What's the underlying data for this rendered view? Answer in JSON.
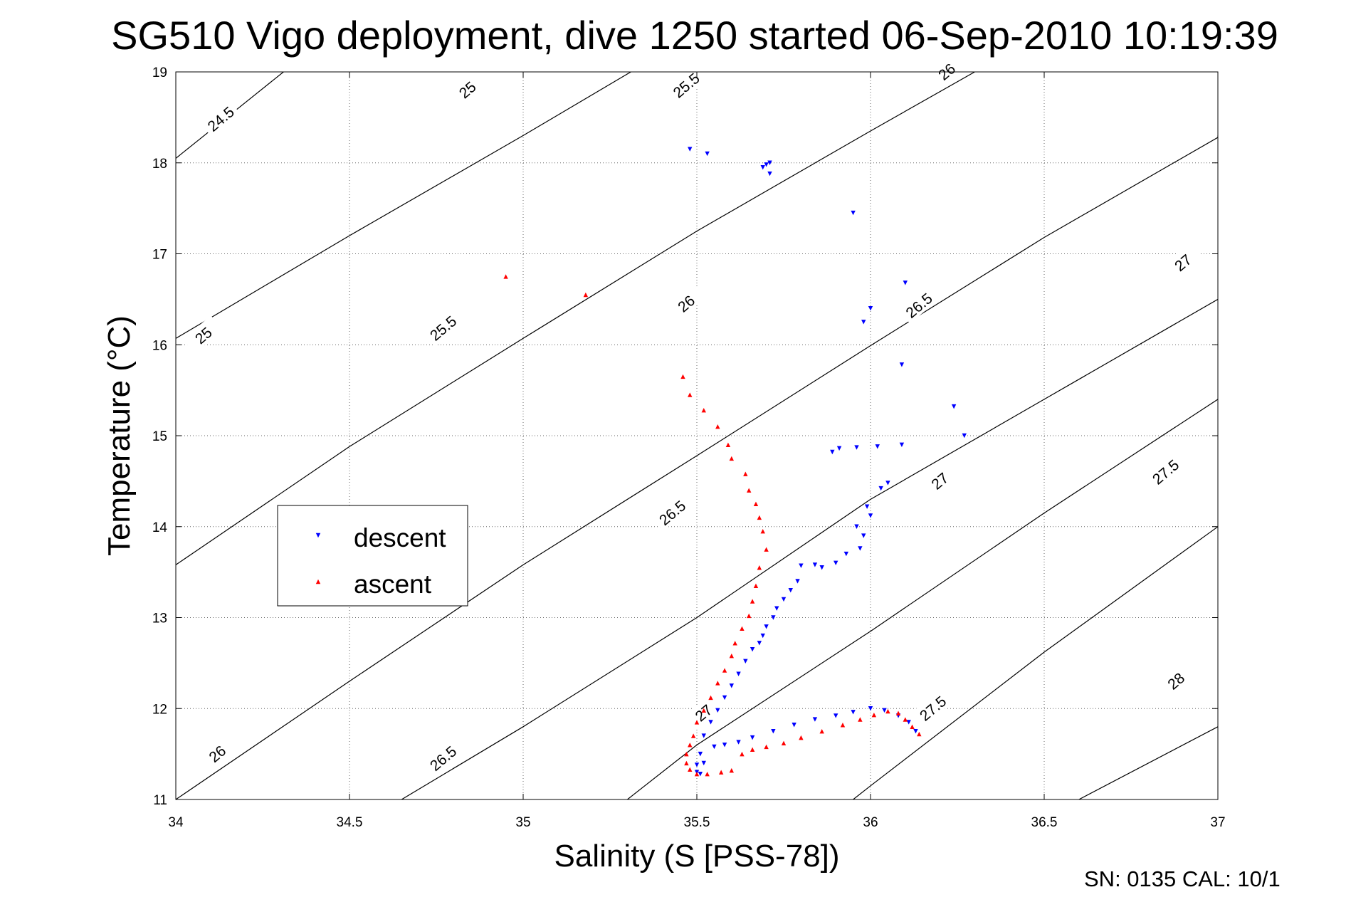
{
  "chart_data": {
    "type": "scatter",
    "title": "SG510 Vigo deployment, dive 1250 started 06-Sep-2010 10:19:39",
    "xlabel": "Salinity (S [PSS-78])",
    "ylabel": "Temperature (°C)",
    "xlim": [
      34,
      37
    ],
    "ylim": [
      11,
      19
    ],
    "xticks": [
      "34",
      "34.5",
      "35",
      "35.5",
      "36",
      "36.5",
      "37"
    ],
    "yticks": [
      "11",
      "12",
      "13",
      "14",
      "15",
      "16",
      "17",
      "18",
      "19"
    ],
    "grid": true,
    "legend": {
      "placement": "center-left",
      "entries": [
        {
          "label": "descent",
          "color": "#0000ff",
          "marker": "triangle-down"
        },
        {
          "label": "ascent",
          "color": "#ff0000",
          "marker": "triangle-up"
        }
      ]
    },
    "contours": [
      {
        "label": "24.5",
        "points": [
          [
            34.0,
            18.05
          ],
          [
            34.31,
            19.0
          ]
        ]
      },
      {
        "label": "25",
        "points": [
          [
            34.0,
            16.07
          ],
          [
            34.5,
            17.2
          ],
          [
            35.0,
            18.3
          ],
          [
            35.31,
            19.0
          ]
        ]
      },
      {
        "label": "25.5",
        "points": [
          [
            34.0,
            13.58
          ],
          [
            34.5,
            14.88
          ],
          [
            35.0,
            16.07
          ],
          [
            35.5,
            17.25
          ],
          [
            36.0,
            18.35
          ],
          [
            36.3,
            19.0
          ]
        ]
      },
      {
        "label": "26",
        "points": [
          [
            34.0,
            11.0
          ],
          [
            34.5,
            12.3
          ],
          [
            35.0,
            13.58
          ],
          [
            35.5,
            14.78
          ],
          [
            36.0,
            15.99
          ],
          [
            36.5,
            17.18
          ],
          [
            37.0,
            18.28
          ],
          [
            37.0,
            18.3
          ]
        ]
      },
      {
        "label": "26.5",
        "points": [
          [
            34.65,
            11.0
          ],
          [
            35.0,
            11.8
          ],
          [
            35.5,
            13.0
          ],
          [
            36.0,
            14.3
          ],
          [
            36.5,
            15.4
          ],
          [
            37.0,
            16.5
          ]
        ]
      },
      {
        "label": "27",
        "points": [
          [
            35.3,
            11.0
          ],
          [
            35.5,
            11.6
          ],
          [
            36.0,
            12.85
          ],
          [
            36.5,
            14.15
          ],
          [
            37.0,
            15.4
          ]
        ]
      },
      {
        "label": "27.5",
        "points": [
          [
            35.95,
            11.0
          ],
          [
            36.0,
            11.15
          ],
          [
            36.5,
            12.62
          ],
          [
            37.0,
            14.0
          ]
        ]
      },
      {
        "label": "28",
        "points": [
          [
            36.6,
            11.0
          ],
          [
            37.0,
            11.8
          ]
        ]
      }
    ],
    "contour_labels": [
      {
        "text": "24.5",
        "x": 34.13,
        "y": 18.48
      },
      {
        "text": "25",
        "x": 34.84,
        "y": 18.8
      },
      {
        "text": "25.5",
        "x": 35.47,
        "y": 18.85
      },
      {
        "text": "26",
        "x": 36.22,
        "y": 19.0
      },
      {
        "text": "25",
        "x": 34.08,
        "y": 16.1
      },
      {
        "text": "25.5",
        "x": 34.77,
        "y": 16.18
      },
      {
        "text": "26",
        "x": 35.47,
        "y": 16.45
      },
      {
        "text": "26.5",
        "x": 36.14,
        "y": 16.43
      },
      {
        "text": "27",
        "x": 36.9,
        "y": 16.9
      },
      {
        "text": "26",
        "x": 34.12,
        "y": 11.5
      },
      {
        "text": "26.5",
        "x": 34.77,
        "y": 11.45
      },
      {
        "text": "26.5",
        "x": 35.43,
        "y": 14.15
      },
      {
        "text": "27",
        "x": 36.2,
        "y": 14.5
      },
      {
        "text": "27.5",
        "x": 36.85,
        "y": 14.6
      },
      {
        "text": "27",
        "x": 35.52,
        "y": 11.95
      },
      {
        "text": "27.5",
        "x": 36.18,
        "y": 12.0
      },
      {
        "text": "28",
        "x": 36.88,
        "y": 12.3
      }
    ],
    "series": [
      {
        "name": "descent",
        "color": "#0000ff",
        "marker": "triangle-down",
        "x": [
          35.48,
          35.53,
          35.69,
          35.7,
          35.71,
          35.71,
          35.95,
          36.1,
          36.0,
          35.98,
          36.09,
          36.24,
          36.27,
          35.89,
          35.91,
          35.96,
          36.02,
          36.09,
          36.03,
          36.05,
          35.99,
          36.0,
          35.96,
          35.98,
          35.97,
          35.93,
          35.9,
          35.86,
          35.84,
          35.8,
          35.79,
          35.77,
          35.75,
          35.73,
          35.72,
          35.7,
          35.69,
          35.68,
          35.66,
          35.64,
          35.62,
          35.6,
          35.58,
          35.56,
          35.54,
          35.52,
          35.51,
          35.5,
          35.5,
          35.51,
          35.52,
          35.55,
          35.58,
          35.62,
          35.66,
          35.72,
          35.78,
          35.84,
          35.9,
          35.95,
          36.0,
          36.04,
          36.08,
          36.11,
          36.13
        ],
        "y": [
          18.15,
          18.1,
          17.95,
          17.98,
          18.0,
          17.88,
          17.45,
          16.68,
          16.4,
          16.25,
          15.78,
          15.32,
          15.0,
          14.82,
          14.86,
          14.87,
          14.88,
          14.9,
          14.42,
          14.48,
          14.22,
          14.12,
          14.0,
          13.9,
          13.76,
          13.7,
          13.6,
          13.55,
          13.58,
          13.57,
          13.4,
          13.3,
          13.2,
          13.1,
          13.0,
          12.9,
          12.8,
          12.72,
          12.65,
          12.52,
          12.38,
          12.25,
          12.12,
          11.98,
          11.85,
          11.7,
          11.5,
          11.38,
          11.3,
          11.28,
          11.4,
          11.58,
          11.6,
          11.63,
          11.68,
          11.75,
          11.82,
          11.88,
          11.92,
          11.96,
          12.0,
          11.98,
          11.92,
          11.85,
          11.75
        ]
      },
      {
        "name": "ascent",
        "color": "#ff0000",
        "marker": "triangle-up",
        "x": [
          34.95,
          35.18,
          35.46,
          35.48,
          35.52,
          35.56,
          35.59,
          35.6,
          35.64,
          35.65,
          35.67,
          35.68,
          35.69,
          35.7,
          35.68,
          35.67,
          35.66,
          35.65,
          35.63,
          35.61,
          35.6,
          35.58,
          35.56,
          35.54,
          35.52,
          35.5,
          35.49,
          35.48,
          35.47,
          35.47,
          35.48,
          35.5,
          35.53,
          35.57,
          35.6,
          35.63,
          35.66,
          35.7,
          35.75,
          35.8,
          35.86,
          35.92,
          35.97,
          36.01,
          36.05,
          36.08,
          36.1,
          36.12,
          36.14
        ],
        "y": [
          16.75,
          16.55,
          15.65,
          15.45,
          15.28,
          15.1,
          14.9,
          14.75,
          14.58,
          14.4,
          14.25,
          14.1,
          13.95,
          13.75,
          13.55,
          13.35,
          13.18,
          13.02,
          12.88,
          12.72,
          12.58,
          12.42,
          12.28,
          12.12,
          11.98,
          11.85,
          11.7,
          11.6,
          11.5,
          11.4,
          11.33,
          11.28,
          11.28,
          11.3,
          11.32,
          11.5,
          11.55,
          11.58,
          11.62,
          11.68,
          11.75,
          11.82,
          11.88,
          11.93,
          11.97,
          11.95,
          11.88,
          11.8,
          11.72
        ]
      }
    ]
  },
  "footer": {
    "serial_text": "SN: 0135  CAL: 10/1"
  }
}
